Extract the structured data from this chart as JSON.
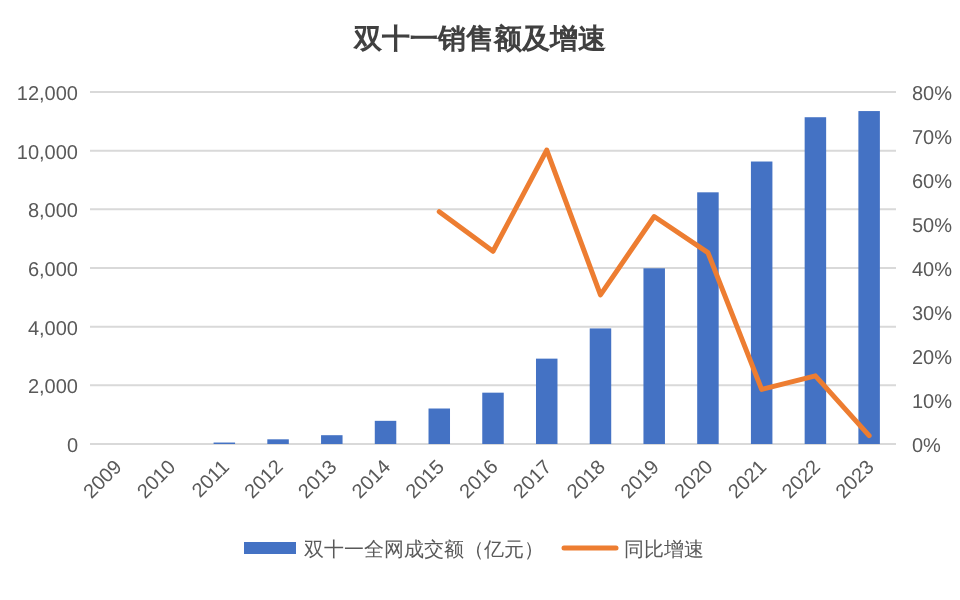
{
  "chart_data": {
    "type": "bar",
    "title": "双十一销售额及增速",
    "categories": [
      "2009",
      "2010",
      "2011",
      "2012",
      "2013",
      "2014",
      "2015",
      "2016",
      "2017",
      "2018",
      "2019",
      "2020",
      "2021",
      "2022",
      "2023"
    ],
    "series": [
      {
        "name": "双十一全网成交额（亿元）",
        "color": "#4472c4",
        "values": [
          null,
          null,
          50,
          160,
          300,
          790,
          1210,
          1750,
          2910,
          3940,
          5990,
          8580,
          9630,
          11140,
          11350
        ]
      },
      {
        "name": "同比增速",
        "type": "line",
        "axis": "y2",
        "color": "#ed7d31",
        "values": [
          null,
          null,
          null,
          null,
          null,
          null,
          52.8,
          43.8,
          66.8,
          33.9,
          51.7,
          43.5,
          12.4,
          15.5,
          1.9
        ]
      }
    ],
    "ylim": [
      0,
      12000
    ],
    "yticks": [
      0,
      {
        "value": 2000,
        "label": "2,000"
      },
      {
        "value": 4000,
        "label": "4,000"
      },
      {
        "value": 6000,
        "label": "6,000"
      },
      {
        "value": 8000,
        "label": "8,000"
      },
      {
        "value": 10000,
        "label": "10,000"
      },
      {
        "value": 12000,
        "label": "12,000"
      }
    ],
    "y2lim": [
      0,
      80
    ],
    "y2ticks": [
      {
        "value": 0,
        "label": "0%"
      },
      {
        "value": 10,
        "label": "10%"
      },
      {
        "value": 20,
        "label": "20%"
      },
      {
        "value": 30,
        "label": "30%"
      },
      {
        "value": 40,
        "label": "40%"
      },
      {
        "value": 50,
        "label": "50%"
      },
      {
        "value": 60,
        "label": "60%"
      },
      {
        "value": 70,
        "label": "70%"
      },
      {
        "value": 80,
        "label": "80%"
      }
    ],
    "grid": "y",
    "legend": "bottom",
    "marker": "none"
  }
}
